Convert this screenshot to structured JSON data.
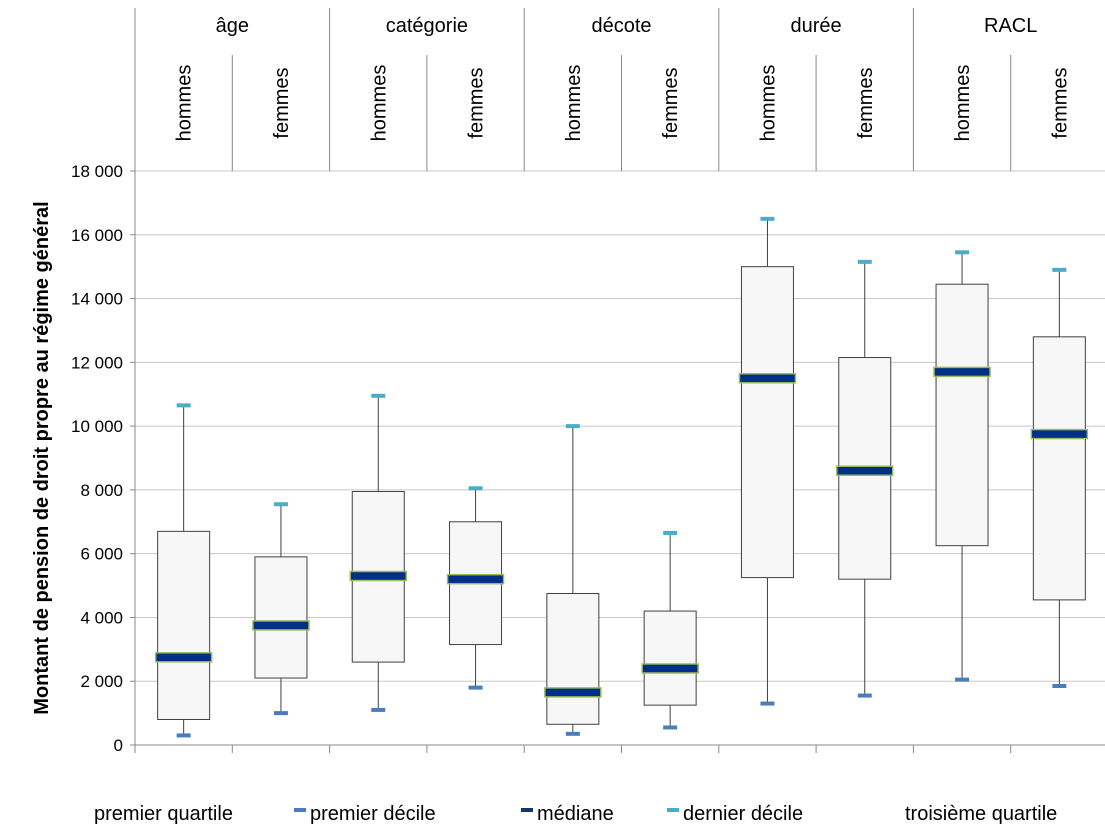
{
  "chart_data": {
    "type": "boxplot",
    "ylabel": "Montant de pension de droit propre au régime général",
    "ylim": [
      0,
      18000
    ],
    "yticks": [
      0,
      2000,
      4000,
      6000,
      8000,
      10000,
      12000,
      14000,
      16000,
      18000
    ],
    "ytick_labels": [
      "0",
      "2 000",
      "4 000",
      "6 000",
      "8 000",
      "10 000",
      "12 000",
      "14 000",
      "16 000",
      "18 000"
    ],
    "grid": true,
    "groups": [
      "âge",
      "catégorie",
      "décote",
      "durée",
      "RACL"
    ],
    "subgroups": [
      "hommes",
      "femmes"
    ],
    "boxes": [
      {
        "group": "âge",
        "sex": "hommes",
        "d1": 300,
        "q1": 800,
        "median": 2750,
        "q3": 6700,
        "d9": 10650
      },
      {
        "group": "âge",
        "sex": "femmes",
        "d1": 1000,
        "q1": 2100,
        "median": 3750,
        "q3": 5900,
        "d9": 7550
      },
      {
        "group": "catégorie",
        "sex": "hommes",
        "d1": 1100,
        "q1": 2600,
        "median": 5300,
        "q3": 7950,
        "d9": 10950
      },
      {
        "group": "catégorie",
        "sex": "femmes",
        "d1": 1800,
        "q1": 3150,
        "median": 5200,
        "q3": 7000,
        "d9": 8050
      },
      {
        "group": "décote",
        "sex": "hommes",
        "d1": 350,
        "q1": 650,
        "median": 1650,
        "q3": 4750,
        "d9": 10000
      },
      {
        "group": "décote",
        "sex": "femmes",
        "d1": 550,
        "q1": 1250,
        "median": 2400,
        "q3": 4200,
        "d9": 6650
      },
      {
        "group": "durée",
        "sex": "hommes",
        "d1": 1300,
        "q1": 5250,
        "median": 11500,
        "q3": 15000,
        "d9": 16500
      },
      {
        "group": "durée",
        "sex": "femmes",
        "d1": 1550,
        "q1": 5200,
        "median": 8600,
        "q3": 12150,
        "d9": 15150
      },
      {
        "group": "RACL",
        "sex": "hommes",
        "d1": 2050,
        "q1": 6250,
        "median": 11700,
        "q3": 14450,
        "d9": 15450
      },
      {
        "group": "RACL",
        "sex": "femmes",
        "d1": 1850,
        "q1": 4550,
        "median": 9750,
        "q3": 12800,
        "d9": 14900
      }
    ],
    "legend": [
      {
        "label": "premier quartile"
      },
      {
        "label": "premier décile",
        "color": "#4a7ebb"
      },
      {
        "label": "médiane",
        "color": "#17375e"
      },
      {
        "label": "dernier décile",
        "color": "#4bacc6"
      },
      {
        "label": "troisième quartile"
      }
    ],
    "colors": {
      "box_fill": "#f7f7f7",
      "box_stroke": "#404040",
      "median_fill": "#002f87",
      "median_outline": "#9bbb59",
      "d1": "#4a7ebb",
      "d9": "#4bacc6",
      "grid": "#c8c8c8"
    }
  }
}
